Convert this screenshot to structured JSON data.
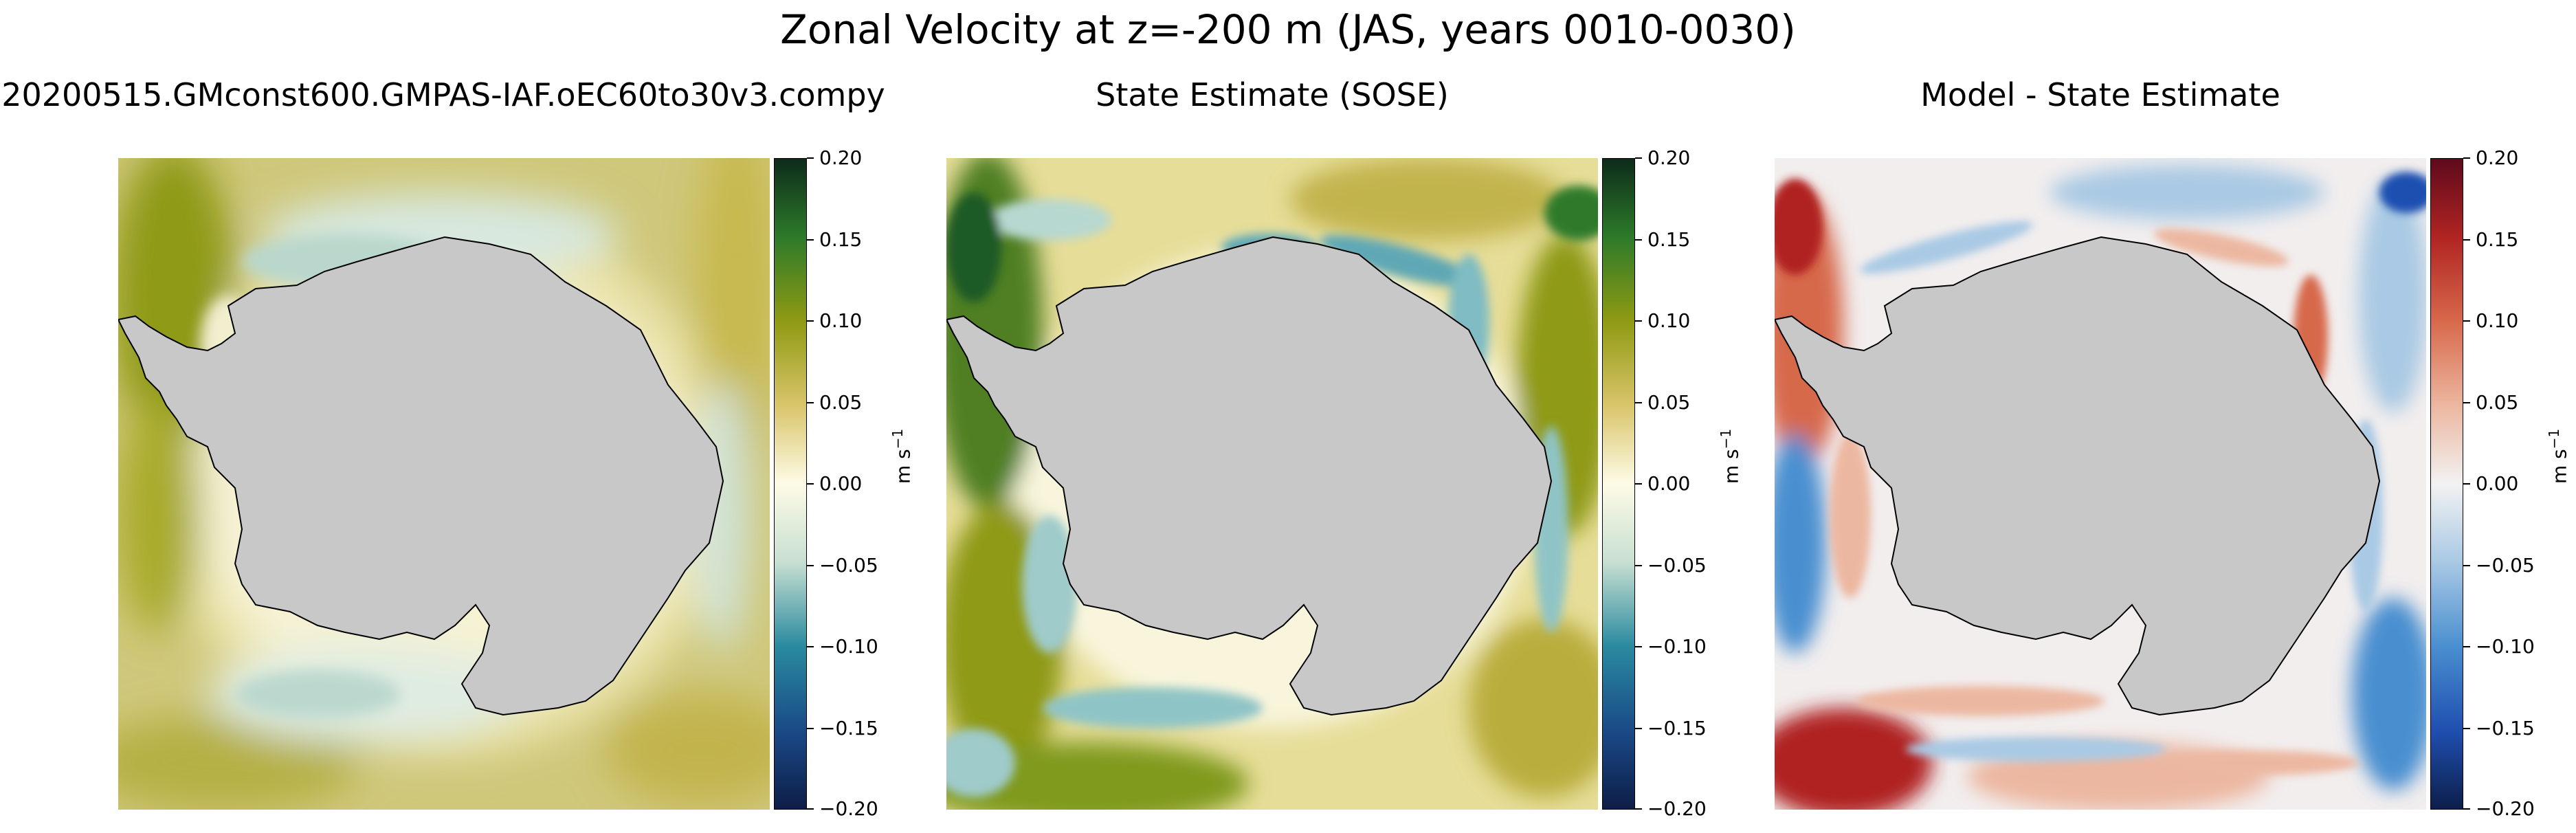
{
  "chart_data": [
    {
      "type": "heatmap",
      "suptitle": "Zonal Velocity at z=-200 m (JAS, years 0010-0030)",
      "title": "20200515.GMconst600.GMPAS-IAF.oEC60to30v3.compy",
      "colormap": "gist_earth-like (navy→teal→white→olive→dark green)",
      "colorbar": {
        "label": "m s",
        "label_superscript": "−1",
        "vmin": -0.2,
        "vmax": 0.2,
        "ticks": [
          "0.20",
          "0.15",
          "0.10",
          "0.05",
          "0.00",
          "−0.05",
          "−0.10",
          "−0.15",
          "−0.20"
        ],
        "colors": [
          "#0e1d47",
          "#1a4a87",
          "#2a8aa0",
          "#c8e0d2",
          "#fdfbe6",
          "#d9c56b",
          "#8f9a13",
          "#2d7a2a",
          "#0d2b1a"
        ]
      },
      "field_description": "south-polar stereographic; mostly weakly positive (olive), negative (teal) along Antarctic coast"
    },
    {
      "type": "heatmap",
      "title": "State Estimate (SOSE)",
      "colorbar": {
        "label": "m s",
        "label_superscript": "−1",
        "vmin": -0.2,
        "vmax": 0.2,
        "ticks": [
          "0.20",
          "0.15",
          "0.10",
          "0.05",
          "0.00",
          "−0.05",
          "−0.10",
          "−0.15",
          "−0.20"
        ],
        "colors": [
          "#0e1d47",
          "#1a4a87",
          "#2a8aa0",
          "#c8e0d2",
          "#fdfbe6",
          "#d9c56b",
          "#8f9a13",
          "#2d7a2a",
          "#0d2b1a"
        ]
      }
    },
    {
      "type": "heatmap",
      "title": "Model - State Estimate",
      "colormap": "RdBu_r",
      "colorbar": {
        "label": "m s",
        "label_superscript": "−1",
        "vmin": -0.2,
        "vmax": 0.2,
        "ticks": [
          "0.20",
          "0.15",
          "0.10",
          "0.05",
          "0.00",
          "−0.05",
          "−0.10",
          "−0.15",
          "−0.20"
        ],
        "colors": [
          "#0c1e4a",
          "#1f4fb0",
          "#4a8fd0",
          "#a9c9e4",
          "#f2f2f2",
          "#ecb7a0",
          "#d7694b",
          "#b02422",
          "#5e0a1c"
        ]
      }
    }
  ],
  "land_color": "#c8c8c8",
  "coast_color": "#000000"
}
